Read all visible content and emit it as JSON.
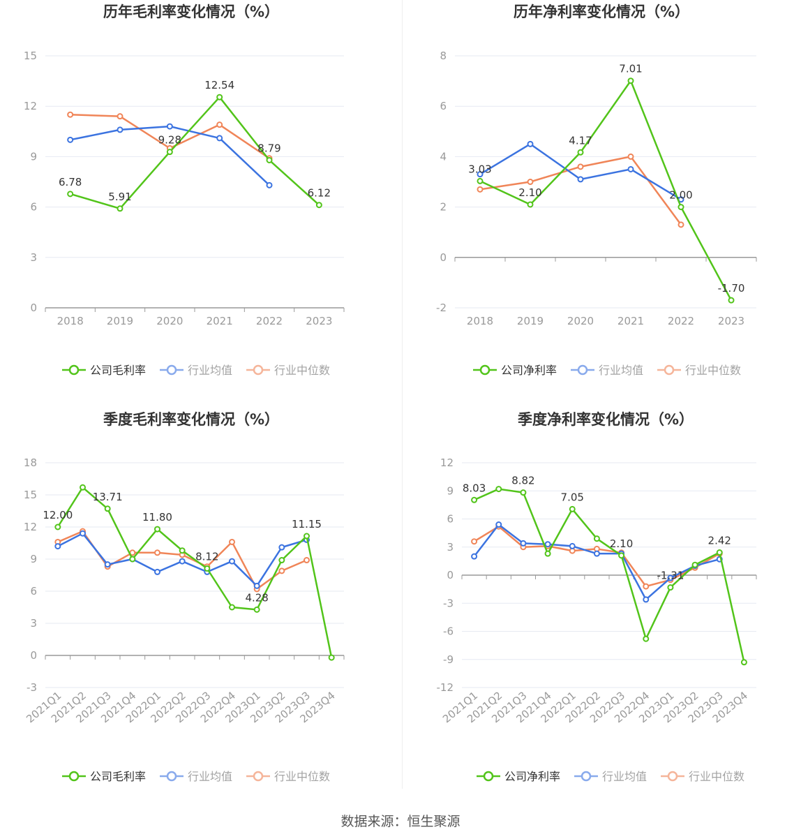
{
  "source_text": "数据来源：恒生聚源",
  "colors": {
    "company": "#52c41a",
    "industry_avg": "#3b73e0",
    "industry_median": "#f08558"
  },
  "chart_data": [
    {
      "type": "line",
      "title": "历年毛利率变化情况（%）",
      "x": [
        "2018",
        "2019",
        "2020",
        "2021",
        "2022",
        "2023"
      ],
      "yticks": [
        0,
        3,
        6,
        9,
        12,
        15
      ],
      "ylim": [
        0,
        15
      ],
      "label_series": 0,
      "series": [
        {
          "name": "公司毛利率",
          "values": [
            6.78,
            5.91,
            9.28,
            12.54,
            8.79,
            6.12
          ],
          "labels": [
            "6.78",
            "5.91",
            "9.28",
            "12.54",
            "8.79",
            "6.12"
          ]
        },
        {
          "name": "行业均值",
          "values": [
            10.0,
            10.6,
            10.8,
            10.1,
            7.3,
            null
          ]
        },
        {
          "name": "行业中位数",
          "values": [
            11.5,
            11.4,
            9.5,
            10.9,
            8.9,
            null
          ]
        }
      ]
    },
    {
      "type": "line",
      "title": "历年净利率变化情况（%）",
      "x": [
        "2018",
        "2019",
        "2020",
        "2021",
        "2022",
        "2023"
      ],
      "yticks": [
        -2,
        0,
        2,
        4,
        6,
        8
      ],
      "ylim": [
        -2,
        8
      ],
      "label_series": 0,
      "series": [
        {
          "name": "公司净利率",
          "values": [
            3.03,
            2.1,
            4.17,
            7.01,
            2.0,
            -1.7
          ],
          "labels": [
            "3.03",
            "2.10",
            "4.17",
            "7.01",
            "2.00",
            "-1.70"
          ]
        },
        {
          "name": "行业均值",
          "values": [
            3.3,
            4.5,
            3.1,
            3.5,
            2.3,
            null
          ]
        },
        {
          "name": "行业中位数",
          "values": [
            2.7,
            3.0,
            3.6,
            4.0,
            1.3,
            null
          ]
        }
      ]
    },
    {
      "type": "line",
      "title": "季度毛利率变化情况（%）",
      "x": [
        "2021Q1",
        "2021Q2",
        "2021Q3",
        "2021Q4",
        "2022Q1",
        "2022Q2",
        "2022Q3",
        "2022Q4",
        "2023Q1",
        "2023Q2",
        "2023Q3",
        "2023Q4"
      ],
      "yticks": [
        -3,
        0,
        3,
        6,
        9,
        12,
        15,
        18
      ],
      "ylim": [
        -3,
        18
      ],
      "label_series": 0,
      "series": [
        {
          "name": "公司毛利率",
          "values": [
            12.0,
            15.7,
            13.71,
            9.0,
            11.8,
            9.8,
            8.12,
            4.5,
            4.28,
            8.9,
            11.15,
            -0.2
          ],
          "labels": [
            "12.00",
            "",
            "13.71",
            "",
            "11.80",
            "",
            "8.12",
            "",
            "4.28",
            "",
            "11.15",
            ""
          ]
        },
        {
          "name": "行业均值",
          "values": [
            10.2,
            11.4,
            8.5,
            9.0,
            7.8,
            8.8,
            7.8,
            8.8,
            6.5,
            10.1,
            10.8,
            null
          ]
        },
        {
          "name": "行业中位数",
          "values": [
            10.6,
            11.6,
            8.3,
            9.6,
            9.6,
            9.4,
            8.3,
            10.6,
            6.2,
            7.9,
            8.9,
            null
          ]
        }
      ]
    },
    {
      "type": "line",
      "title": "季度净利率变化情况（%）",
      "x": [
        "2021Q1",
        "2021Q2",
        "2021Q3",
        "2021Q4",
        "2022Q1",
        "2022Q2",
        "2022Q3",
        "2022Q4",
        "2023Q1",
        "2023Q2",
        "2023Q3",
        "2023Q4"
      ],
      "yticks": [
        -12,
        -9,
        -6,
        -3,
        0,
        3,
        6,
        9,
        12
      ],
      "ylim": [
        -12,
        12
      ],
      "label_series": 0,
      "series": [
        {
          "name": "公司净利率",
          "values": [
            8.03,
            9.2,
            8.82,
            2.3,
            7.05,
            3.9,
            2.1,
            -6.8,
            -1.31,
            1.1,
            2.42,
            -9.3
          ],
          "labels": [
            "8.03",
            "",
            "8.82",
            "",
            "7.05",
            "",
            "2.10",
            "",
            "-1.31",
            "",
            "2.42",
            ""
          ]
        },
        {
          "name": "行业均值",
          "values": [
            2.0,
            5.4,
            3.4,
            3.3,
            3.1,
            2.3,
            2.3,
            -2.6,
            -0.3,
            1.0,
            1.7,
            null
          ]
        },
        {
          "name": "行业中位数",
          "values": [
            3.6,
            5.2,
            3.0,
            3.1,
            2.6,
            2.8,
            2.4,
            -1.2,
            -0.5,
            0.8,
            2.3,
            null
          ]
        }
      ]
    }
  ]
}
